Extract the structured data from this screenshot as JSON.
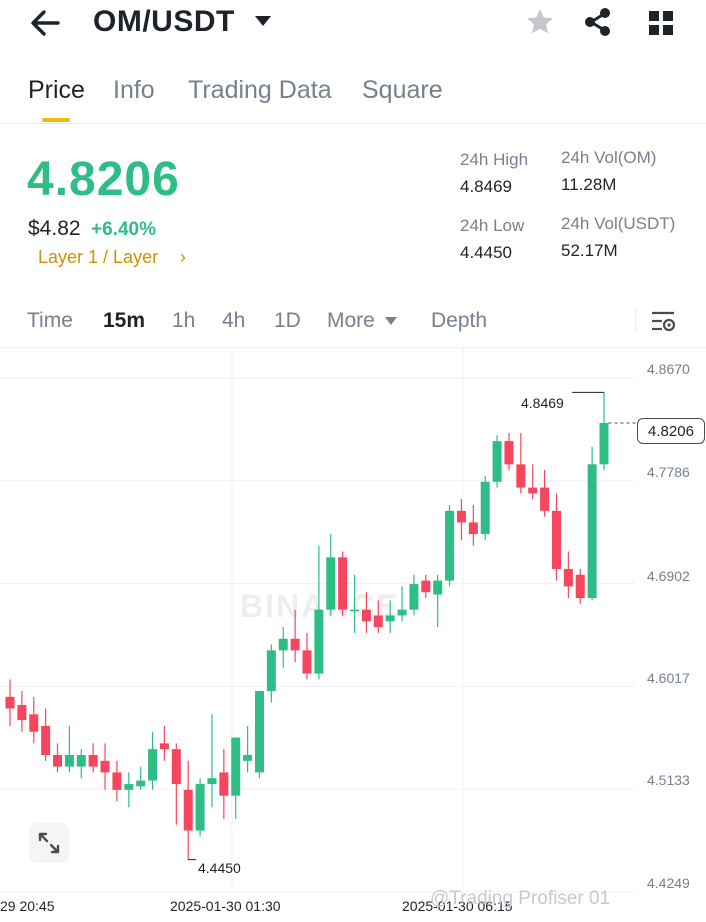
{
  "header": {
    "pair": "OM/USDT",
    "icons": [
      "back-arrow-icon",
      "caret-down-icon",
      "star-icon",
      "share-icon",
      "grid-icon"
    ]
  },
  "tabs": [
    {
      "label": "Price",
      "active": true
    },
    {
      "label": "Info",
      "active": false
    },
    {
      "label": "Trading Data",
      "active": false
    },
    {
      "label": "Square",
      "active": false
    }
  ],
  "price": {
    "last": "4.8206",
    "usd": "$4.82",
    "change": "+6.40%",
    "tag": "Layer 1 / Layer",
    "tag_chevron": "›"
  },
  "stats": {
    "high_label": "24h High",
    "high_value": "4.8469",
    "low_label": "24h Low",
    "low_value": "4.4450",
    "vol_base_label": "24h Vol(OM)",
    "vol_base_value": "11.28M",
    "vol_quote_label": "24h Vol(USDT)",
    "vol_quote_value": "52.17M"
  },
  "intervals": {
    "time": "Time",
    "m15": "15m",
    "h1": "1h",
    "h4": "4h",
    "d1": "1D",
    "more": "More",
    "depth": "Depth",
    "selected": "15m"
  },
  "colors": {
    "up": "#2ebd85",
    "down": "#f6465d",
    "accent": "#f0b90b",
    "text": "#1e2329",
    "muted": "#76808f"
  },
  "chart_data": {
    "type": "candlestick",
    "y_ticks": [
      "4.8670",
      "4.7786",
      "4.6902",
      "4.6017",
      "4.5133",
      "4.4249"
    ],
    "x_ticks": [
      "29 20:45",
      "2025-01-30 01:30",
      "2025-01-30 06:15"
    ],
    "current_price": "4.8206",
    "high_marker": "4.8469",
    "low_marker": "4.4450",
    "candles": [
      {
        "o": 4.585,
        "h": 4.6,
        "c": 4.575,
        "l": 4.56
      },
      {
        "o": 4.578,
        "h": 4.59,
        "c": 4.565,
        "l": 4.555
      },
      {
        "o": 4.57,
        "h": 4.585,
        "c": 4.555,
        "l": 4.545
      },
      {
        "o": 4.56,
        "h": 4.575,
        "c": 4.535,
        "l": 4.53
      },
      {
        "o": 4.535,
        "h": 4.545,
        "c": 4.525,
        "l": 4.52
      },
      {
        "o": 4.525,
        "h": 4.56,
        "c": 4.535,
        "l": 4.52
      },
      {
        "o": 4.525,
        "h": 4.54,
        "c": 4.535,
        "l": 4.515
      },
      {
        "o": 4.535,
        "h": 4.545,
        "c": 4.525,
        "l": 4.52
      },
      {
        "o": 4.53,
        "h": 4.545,
        "c": 4.52,
        "l": 4.505
      },
      {
        "o": 4.52,
        "h": 4.53,
        "c": 4.505,
        "l": 4.495
      },
      {
        "o": 4.505,
        "h": 4.52,
        "c": 4.51,
        "l": 4.49
      },
      {
        "o": 4.508,
        "h": 4.525,
        "c": 4.513,
        "l": 4.505
      },
      {
        "o": 4.513,
        "h": 4.555,
        "c": 4.54,
        "l": 4.505
      },
      {
        "o": 4.545,
        "h": 4.56,
        "c": 4.54,
        "l": 4.53
      },
      {
        "o": 4.54,
        "h": 4.545,
        "c": 4.51,
        "l": 4.475
      },
      {
        "o": 4.505,
        "h": 4.53,
        "c": 4.47,
        "l": 4.445
      },
      {
        "o": 4.47,
        "h": 4.515,
        "c": 4.51,
        "l": 4.465
      },
      {
        "o": 4.51,
        "h": 4.57,
        "c": 4.515,
        "l": 4.49
      },
      {
        "o": 4.52,
        "h": 4.54,
        "c": 4.5,
        "l": 4.48
      },
      {
        "o": 4.5,
        "h": 4.55,
        "c": 4.55,
        "l": 4.48
      },
      {
        "o": 4.53,
        "h": 4.56,
        "c": 4.535,
        "l": 4.52
      },
      {
        "o": 4.52,
        "h": 4.59,
        "c": 4.59,
        "l": 4.515
      },
      {
        "o": 4.59,
        "h": 4.63,
        "c": 4.625,
        "l": 4.58
      },
      {
        "o": 4.625,
        "h": 4.645,
        "c": 4.635,
        "l": 4.61
      },
      {
        "o": 4.635,
        "h": 4.66,
        "c": 4.625,
        "l": 4.615
      },
      {
        "o": 4.625,
        "h": 4.64,
        "c": 4.605,
        "l": 4.6
      },
      {
        "o": 4.605,
        "h": 4.715,
        "c": 4.66,
        "l": 4.6
      },
      {
        "o": 4.66,
        "h": 4.725,
        "c": 4.705,
        "l": 4.655
      },
      {
        "o": 4.705,
        "h": 4.71,
        "c": 4.66,
        "l": 4.655
      },
      {
        "o": 4.66,
        "h": 4.69,
        "c": 4.66,
        "l": 4.64
      },
      {
        "o": 4.66,
        "h": 4.675,
        "c": 4.65,
        "l": 4.64
      },
      {
        "o": 4.655,
        "h": 4.668,
        "c": 4.645,
        "l": 4.64
      },
      {
        "o": 4.65,
        "h": 4.668,
        "c": 4.655,
        "l": 4.64
      },
      {
        "o": 4.655,
        "h": 4.68,
        "c": 4.66,
        "l": 4.65
      },
      {
        "o": 4.66,
        "h": 4.69,
        "c": 4.682,
        "l": 4.655
      },
      {
        "o": 4.685,
        "h": 4.69,
        "c": 4.675,
        "l": 4.67
      },
      {
        "o": 4.673,
        "h": 4.69,
        "c": 4.685,
        "l": 4.645
      },
      {
        "o": 4.685,
        "h": 4.75,
        "c": 4.745,
        "l": 4.68
      },
      {
        "o": 4.745,
        "h": 4.755,
        "c": 4.735,
        "l": 4.72
      },
      {
        "o": 4.735,
        "h": 4.75,
        "c": 4.725,
        "l": 4.715
      },
      {
        "o": 4.725,
        "h": 4.775,
        "c": 4.77,
        "l": 4.72
      },
      {
        "o": 4.77,
        "h": 4.81,
        "c": 4.805,
        "l": 4.765
      },
      {
        "o": 4.805,
        "h": 4.812,
        "c": 4.785,
        "l": 4.78
      },
      {
        "o": 4.785,
        "h": 4.812,
        "c": 4.765,
        "l": 4.76
      },
      {
        "o": 4.765,
        "h": 4.785,
        "c": 4.76,
        "l": 4.755
      },
      {
        "o": 4.765,
        "h": 4.78,
        "c": 4.745,
        "l": 4.74
      },
      {
        "o": 4.745,
        "h": 4.76,
        "c": 4.695,
        "l": 4.685
      },
      {
        "o": 4.695,
        "h": 4.71,
        "c": 4.68,
        "l": 4.67
      },
      {
        "o": 4.69,
        "h": 4.695,
        "c": 4.67,
        "l": 4.665
      },
      {
        "o": 4.67,
        "h": 4.8,
        "c": 4.785,
        "l": 4.668
      },
      {
        "o": 4.785,
        "h": 4.8469,
        "c": 4.8206,
        "l": 4.78
      }
    ]
  },
  "watermark": "BINANCE",
  "credit": "@Trading Profiser 01"
}
